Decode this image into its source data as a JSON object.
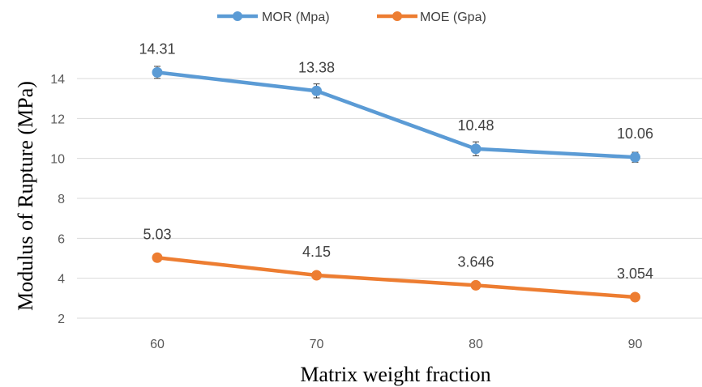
{
  "chart_data": {
    "type": "line",
    "title": "",
    "xlabel": "Matrix weight fraction",
    "ylabel": "Modulus of Rupture (MPa)",
    "categories": [
      "60",
      "70",
      "80",
      "90"
    ],
    "ylim": [
      2,
      14
    ],
    "yticks": [
      2,
      4,
      6,
      8,
      10,
      12,
      14
    ],
    "grid": true,
    "legend_position": "top",
    "series": [
      {
        "name": "MOR (Mpa)",
        "color": "#5b9bd5",
        "values": [
          14.31,
          13.38,
          10.48,
          10.06
        ],
        "labels": [
          "14.31",
          "13.38",
          "10.48",
          "10.06"
        ],
        "error": [
          0.3,
          0.35,
          0.35,
          0.25
        ]
      },
      {
        "name": "MOE (Gpa)",
        "color": "#ed7d31",
        "values": [
          5.03,
          4.15,
          3.646,
          3.054
        ],
        "labels": [
          "5.03",
          "4.15",
          "3.646",
          "3.054"
        ]
      }
    ]
  }
}
